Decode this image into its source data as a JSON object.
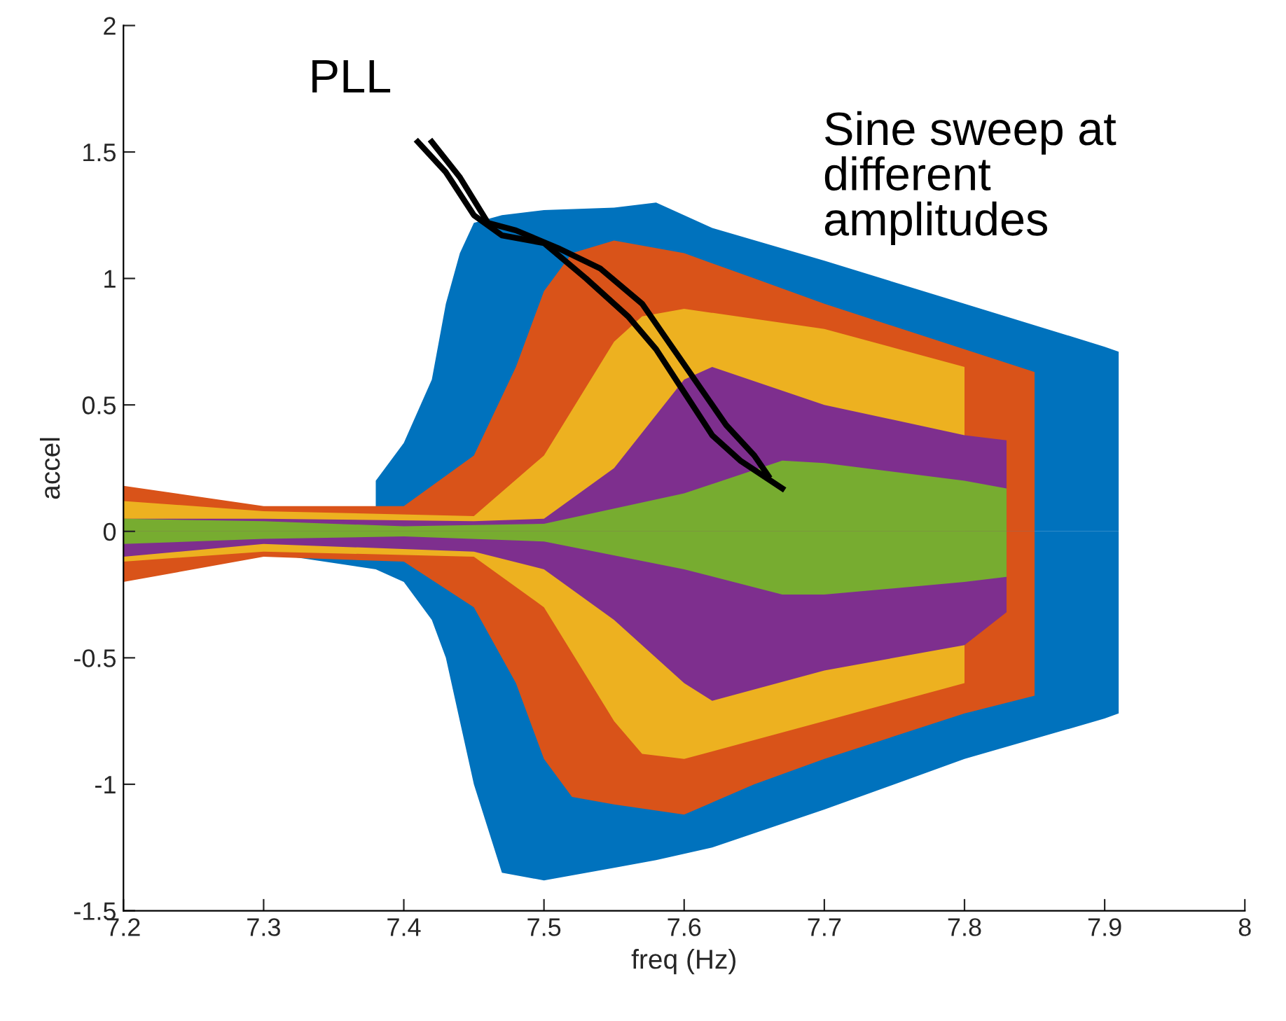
{
  "chart_data": {
    "type": "area",
    "xlabel": "freq (Hz)",
    "ylabel": "accel",
    "xlim": [
      7.2,
      8
    ],
    "xticks": [
      7.2,
      7.3,
      7.4,
      7.5,
      7.6,
      7.7,
      7.8,
      7.9,
      8
    ],
    "ylim": [
      -1.5,
      2
    ],
    "yticks": [
      -1.5,
      -1,
      -0.5,
      0,
      0.5,
      1,
      1.5,
      2
    ],
    "grid": false,
    "legend": false,
    "annotations": [
      "PLL",
      "Sine sweep at\ndifferent\namplitudes"
    ],
    "series": [
      {
        "color": "#0072bd",
        "x": [
          7.38,
          7.4,
          7.42,
          7.43,
          7.44,
          7.45,
          7.47,
          7.5,
          7.55,
          7.58,
          7.62,
          7.7,
          7.8,
          7.9,
          7.91
        ],
        "values": [
          0.2,
          0.35,
          0.6,
          0.9,
          1.1,
          1.22,
          1.25,
          1.27,
          1.28,
          1.3,
          1.2,
          1.07,
          0.9,
          0.73,
          0.71
        ]
      },
      {
        "color": "#0072bd",
        "x": [
          7.3,
          7.32,
          7.38,
          7.4,
          7.42,
          7.43,
          7.44,
          7.45,
          7.47,
          7.5,
          7.55,
          7.58,
          7.62,
          7.7,
          7.8,
          7.9,
          7.91
        ],
        "values": [
          -0.1,
          -0.1,
          -0.15,
          -0.2,
          -0.35,
          -0.5,
          -0.75,
          -1.0,
          -1.35,
          -1.38,
          -1.33,
          -1.3,
          -1.25,
          -1.1,
          -0.9,
          -0.74,
          -0.72
        ]
      },
      {
        "color": "#d95319",
        "x": [
          7.2,
          7.3,
          7.4,
          7.45,
          7.48,
          7.5,
          7.52,
          7.55,
          7.6,
          7.65,
          7.7,
          7.8,
          7.85
        ],
        "values": [
          0.18,
          0.1,
          0.1,
          0.3,
          0.65,
          0.95,
          1.1,
          1.15,
          1.1,
          1.0,
          0.9,
          0.72,
          0.63
        ]
      },
      {
        "color": "#d95319",
        "x": [
          7.2,
          7.3,
          7.4,
          7.45,
          7.48,
          7.5,
          7.52,
          7.55,
          7.6,
          7.65,
          7.7,
          7.8,
          7.85
        ],
        "values": [
          -0.2,
          -0.1,
          -0.12,
          -0.3,
          -0.6,
          -0.9,
          -1.05,
          -1.08,
          -1.12,
          -1.0,
          -0.9,
          -0.72,
          -0.65
        ]
      },
      {
        "color": "#edb120",
        "x": [
          7.2,
          7.3,
          7.45,
          7.5,
          7.55,
          7.57,
          7.6,
          7.7,
          7.8
        ],
        "values": [
          0.12,
          0.08,
          0.06,
          0.3,
          0.75,
          0.85,
          0.88,
          0.8,
          0.65
        ]
      },
      {
        "color": "#edb120",
        "x": [
          7.2,
          7.3,
          7.45,
          7.5,
          7.55,
          7.57,
          7.6,
          7.7,
          7.8
        ],
        "values": [
          -0.12,
          -0.08,
          -0.1,
          -0.3,
          -0.75,
          -0.88,
          -0.9,
          -0.75,
          -0.6
        ]
      },
      {
        "color": "#7e2f8e",
        "x": [
          7.2,
          7.3,
          7.45,
          7.5,
          7.55,
          7.6,
          7.62,
          7.7,
          7.8,
          7.83
        ],
        "values": [
          0.05,
          0.05,
          0.04,
          0.05,
          0.25,
          0.6,
          0.65,
          0.5,
          0.38,
          0.36
        ]
      },
      {
        "color": "#7e2f8e",
        "x": [
          7.2,
          7.3,
          7.45,
          7.5,
          7.55,
          7.6,
          7.62,
          7.7,
          7.8,
          7.83
        ],
        "values": [
          -0.1,
          -0.05,
          -0.08,
          -0.15,
          -0.35,
          -0.6,
          -0.67,
          -0.55,
          -0.45,
          -0.32
        ]
      },
      {
        "color": "#77ac30",
        "x": [
          7.2,
          7.3,
          7.4,
          7.5,
          7.6,
          7.67,
          7.7,
          7.8,
          7.83
        ],
        "values": [
          0.05,
          0.04,
          0.02,
          0.03,
          0.15,
          0.28,
          0.27,
          0.2,
          0.17
        ]
      },
      {
        "color": "#77ac30",
        "x": [
          7.2,
          7.3,
          7.4,
          7.5,
          7.6,
          7.67,
          7.7,
          7.8,
          7.83
        ],
        "values": [
          -0.05,
          -0.03,
          -0.02,
          -0.04,
          -0.15,
          -0.25,
          -0.25,
          -0.2,
          -0.18
        ]
      },
      {
        "type": "line",
        "color": "#000000",
        "x": [
          7.41,
          7.43,
          7.45,
          7.47,
          7.5,
          7.53,
          7.56,
          7.58,
          7.6,
          7.62,
          7.64,
          7.67
        ],
        "values": [
          1.54,
          1.42,
          1.25,
          1.17,
          1.14,
          1.0,
          0.85,
          0.72,
          0.55,
          0.38,
          0.28,
          0.17
        ]
      },
      {
        "type": "line",
        "color": "#000000",
        "x": [
          7.42,
          7.44,
          7.46,
          7.48,
          7.51,
          7.54,
          7.57,
          7.59,
          7.61,
          7.63,
          7.65,
          7.66
        ],
        "values": [
          1.54,
          1.4,
          1.22,
          1.19,
          1.12,
          1.04,
          0.9,
          0.74,
          0.58,
          0.42,
          0.3,
          0.22
        ]
      }
    ]
  }
}
